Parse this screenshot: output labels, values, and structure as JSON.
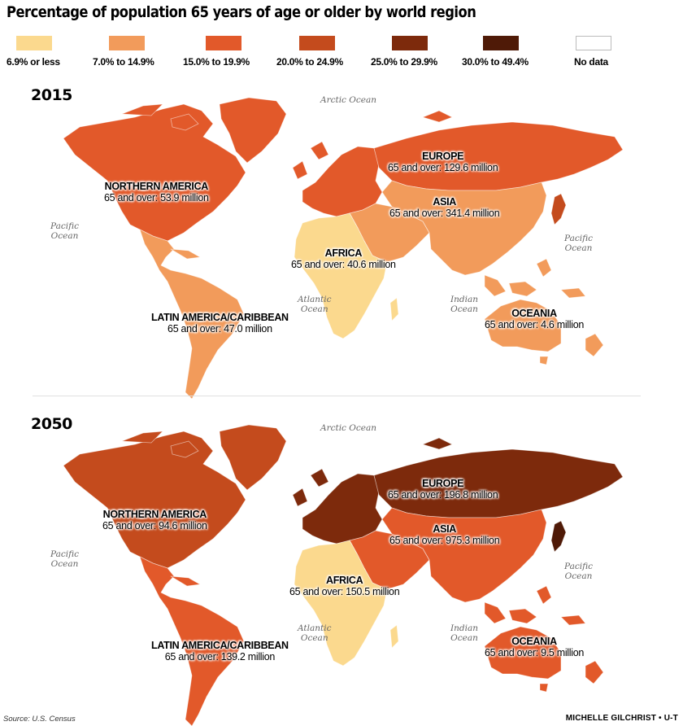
{
  "title": "Percentage of population 65 years of age or older by world region",
  "legend": [
    {
      "label": "6.9% or less",
      "color": "#fbd98e"
    },
    {
      "label": "7.0% to 14.9%",
      "color": "#f29b5b"
    },
    {
      "label": "15.0% to 19.9%",
      "color": "#e2592a"
    },
    {
      "label": "20.0% to 24.9%",
      "color": "#c44b1d"
    },
    {
      "label": "25.0% to 29.9%",
      "color": "#7d2a0c"
    },
    {
      "label": "30.0% to 49.4%",
      "color": "#4f1a07"
    },
    {
      "label": "No data",
      "color": "#ffffff"
    }
  ],
  "oceans": {
    "arctic": "Arctic Ocean",
    "pacific_line1": "Pacific",
    "pacific_line2": "Ocean",
    "atlantic_line1": "Atlantic",
    "atlantic_line2": "Ocean",
    "indian_line1": "Indian",
    "indian_line2": "Ocean"
  },
  "maps": [
    {
      "year": "2015",
      "colors": {
        "na": "#e2592a",
        "greenland": "#e2592a",
        "latam": "#f29b5b",
        "europe": "#e2592a",
        "russia": "#e2592a",
        "asia": "#f29b5b",
        "middleeast": "#f29b5b",
        "africa": "#fbd98e",
        "oceania": "#f29b5b",
        "japan": "#c44b1d"
      },
      "regions": {
        "na": {
          "name": "Northern America",
          "value": "65 and over: 53.9 million"
        },
        "latam": {
          "name": "Latin America/Caribbean",
          "value": "65 and over: 47.0 million"
        },
        "europe": {
          "name": "Europe",
          "value": "65 and over: 129.6 million"
        },
        "asia": {
          "name": "Asia",
          "value": "65 and over: 341.4 million"
        },
        "africa": {
          "name": "Africa",
          "value": "65 and over: 40.6 million"
        },
        "oceania": {
          "name": "Oceania",
          "value": "65 and over: 4.6 million"
        }
      }
    },
    {
      "year": "2050",
      "colors": {
        "na": "#c44b1d",
        "greenland": "#c44b1d",
        "latam": "#e2592a",
        "europe": "#7d2a0c",
        "russia": "#7d2a0c",
        "asia": "#e2592a",
        "middleeast": "#e2592a",
        "africa": "#fbd98e",
        "oceania": "#e2592a",
        "japan": "#4f1a07"
      },
      "regions": {
        "na": {
          "name": "Northern America",
          "value": "65 and over: 94.6 million"
        },
        "latam": {
          "name": "Latin America/Caribbean",
          "value": "65 and over: 139.2 million"
        },
        "europe": {
          "name": "Europe",
          "value": "65 and over: 196.8 million"
        },
        "asia": {
          "name": "Asia",
          "value": "65 and over: 975.3 million"
        },
        "africa": {
          "name": "Africa",
          "value": "65 and over: 150.5 million"
        },
        "oceania": {
          "name": "Oceania",
          "value": "65 and over: 9.5 million"
        }
      }
    }
  ],
  "source": "Source: U.S. Census",
  "credit": "MICHELLE GILCHRIST • U-T"
}
